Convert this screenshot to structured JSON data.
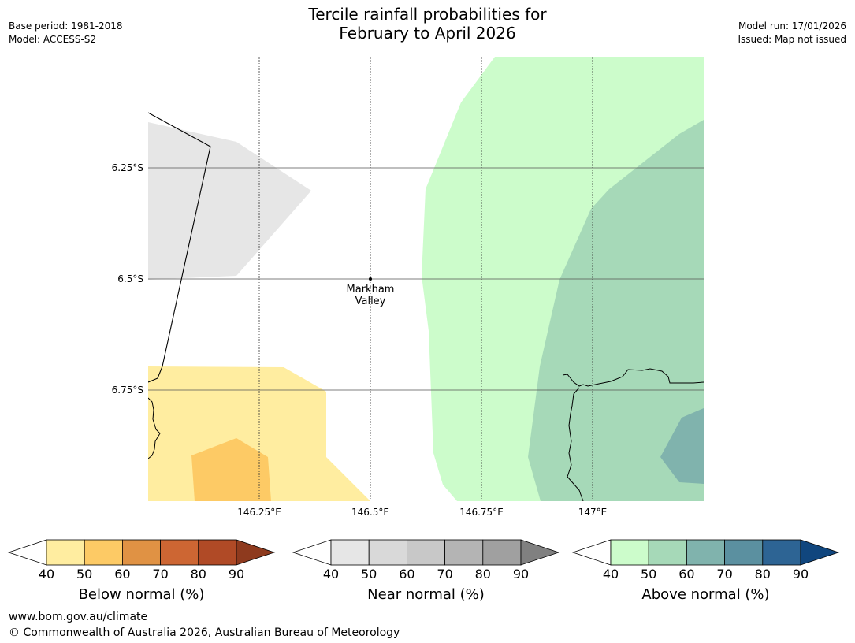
{
  "title": {
    "line1": "Tercile rainfall probabilities for",
    "line2": "February to April 2026"
  },
  "meta": {
    "base_period": "Base period: 1981-2018",
    "model": "Model: ACCESS-S2",
    "model_run": "Model run: 17/01/2026",
    "issued": "Issued: Map not issued"
  },
  "map": {
    "lat_labels": [
      "6.25°S",
      "6.5°S",
      "6.75°S"
    ],
    "lon_labels": [
      "146.25°E",
      "146.5°E",
      "146.75°E",
      "147°E"
    ],
    "place": {
      "line1": "Markham",
      "line2": "Valley"
    }
  },
  "colorbars": [
    {
      "label": "Below normal (%)",
      "ticks": [
        "40",
        "50",
        "60",
        "70",
        "80",
        "90"
      ],
      "colors": [
        "#ffeda0",
        "#fdca65",
        "#e09244",
        "#cd6633",
        "#b04a26",
        "#8e3a1e"
      ]
    },
    {
      "label": "Near normal (%)",
      "ticks": [
        "40",
        "50",
        "60",
        "70",
        "80",
        "90"
      ],
      "colors": [
        "#e6e6e6",
        "#d9d9d9",
        "#c8c8c8",
        "#b4b4b4",
        "#a0a0a0",
        "#808080"
      ]
    },
    {
      "label": "Above normal (%)",
      "ticks": [
        "40",
        "50",
        "60",
        "70",
        "80",
        "90"
      ],
      "colors": [
        "#ccfccb",
        "#a6d9b8",
        "#80b3ad",
        "#5b90a0",
        "#2d6494",
        "#10467e"
      ]
    }
  ],
  "footer": {
    "url": "www.bom.gov.au/climate",
    "copyright": "© Commonwealth of Australia 2026, Australian Bureau of Meteorology"
  }
}
